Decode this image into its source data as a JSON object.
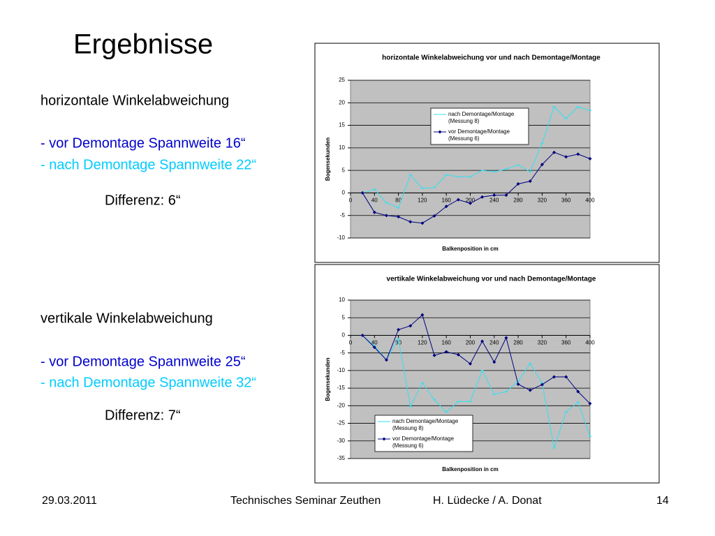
{
  "slide": {
    "title": "Ergebnisse",
    "sections": [
      {
        "heading": "horizontale Winkelabweichung",
        "before": "- vor Demontage Spannweite 16“",
        "after": "- nach Demontage Spannweite 22“",
        "difference": "Differenz: 6“"
      },
      {
        "heading": "vertikale Winkelabweichung",
        "before": "- vor Demontage Spannweite 25“",
        "after": "- nach Demontage Spannweite 32“",
        "difference": "Differenz: 7“"
      }
    ],
    "footer": {
      "date": "29.03.2011",
      "event": "Technisches Seminar Zeuthen",
      "authors": "H. Lüdecke / A. Donat",
      "page": "14"
    }
  },
  "chart_data": [
    {
      "type": "line",
      "title": "horizontale Winkelabweichung vor und nach Demontage/Montage",
      "x_label": "Balkenposition in cm",
      "y_label": "Bogensekunden",
      "x": [
        20,
        40,
        60,
        80,
        100,
        120,
        140,
        160,
        180,
        200,
        220,
        240,
        260,
        280,
        300,
        320,
        340,
        360,
        380,
        400
      ],
      "series": [
        {
          "name": "nach Demontage/Montage (Messung 8)",
          "color": "#33e0f0",
          "marker": "dash",
          "values": [
            0,
            0.8,
            -2.2,
            -3.3,
            4,
            1,
            1.2,
            4,
            3.6,
            3.6,
            5,
            4.7,
            5.3,
            6.2,
            4.7,
            11,
            19.1,
            16.5,
            19.1,
            18.3
          ]
        },
        {
          "name": "vor Demontage/Montage (Messung 6)",
          "color": "#000080",
          "marker": "diamond",
          "values": [
            0,
            -4.3,
            -5,
            -5.3,
            -6.4,
            -6.7,
            -5.1,
            -3,
            -1.5,
            -2.3,
            -0.9,
            -0.5,
            -0.5,
            2,
            2.6,
            6.3,
            9,
            8,
            8.6,
            7.6
          ]
        }
      ],
      "xlim": [
        0,
        400
      ],
      "xticks": [
        0,
        40,
        80,
        120,
        160,
        200,
        240,
        280,
        320,
        360,
        400
      ],
      "ylim": [
        -10,
        25
      ],
      "yticks": [
        -10,
        -5,
        0,
        5,
        10,
        15,
        20,
        25
      ],
      "grid": true,
      "legend": "upper right"
    },
    {
      "type": "line",
      "title": "vertikale Winkelabweichung vor und nach Demontage/Montage",
      "x_label": "Balkenposition in cm",
      "y_label": "Bogensekunden",
      "x": [
        20,
        40,
        60,
        80,
        100,
        120,
        140,
        160,
        180,
        200,
        220,
        240,
        260,
        280,
        300,
        320,
        340,
        360,
        380,
        400
      ],
      "series": [
        {
          "name": "nach Demontage/Montage (Messung 8)",
          "color": "#33e0f0",
          "marker": "dash",
          "values": [
            0,
            -3,
            -7,
            -1,
            -20.2,
            -13.5,
            -18.3,
            -21.8,
            -18.8,
            -18.8,
            -10,
            -16.8,
            -16,
            -13,
            -8,
            -13.5,
            -32,
            -21.8,
            -19,
            -28.7
          ]
        },
        {
          "name": "vor Demontage/Montage (Messung 6)",
          "color": "#000080",
          "marker": "diamond",
          "values": [
            0,
            -3.4,
            -7,
            1.6,
            2.7,
            5.8,
            -5.7,
            -4.7,
            -5.5,
            -8.1,
            -1.7,
            -7.6,
            -0.7,
            -13.9,
            -15.6,
            -14,
            -11.8,
            -11.8,
            -16,
            -19.4
          ]
        }
      ],
      "xlim": [
        0,
        400
      ],
      "xticks": [
        0,
        40,
        80,
        120,
        160,
        200,
        240,
        280,
        320,
        360,
        400
      ],
      "ylim": [
        -35,
        10
      ],
      "yticks": [
        -35,
        -30,
        -25,
        -20,
        -15,
        -10,
        -5,
        0,
        5,
        10
      ],
      "grid": true,
      "legend": "lower left"
    }
  ]
}
